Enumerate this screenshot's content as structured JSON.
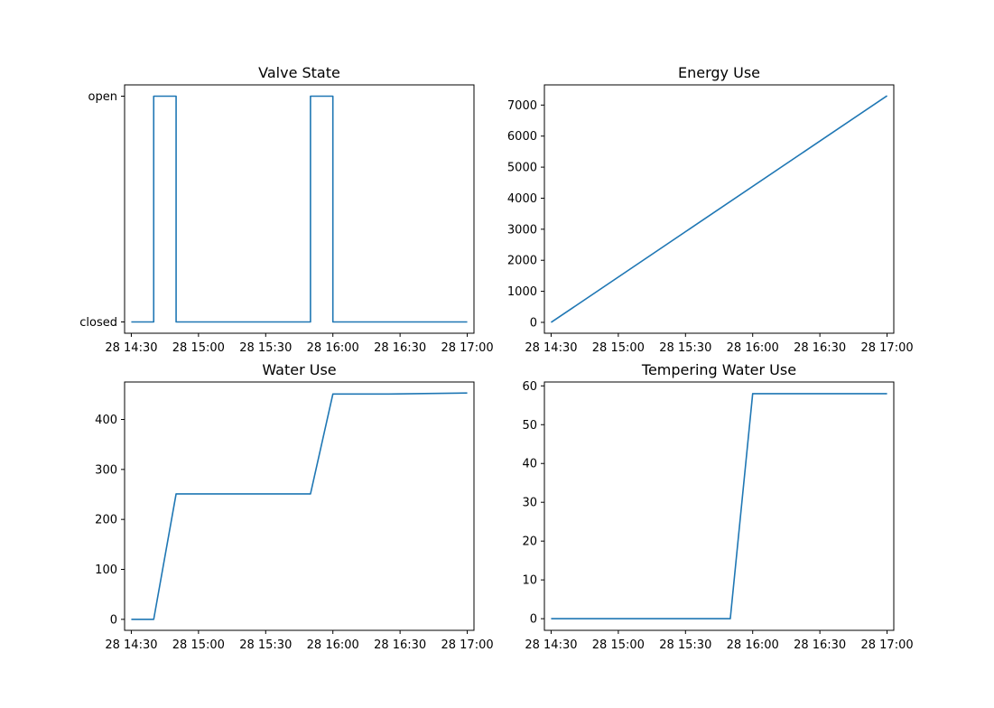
{
  "colors": {
    "series": "#1f77b4"
  },
  "chart_data": [
    {
      "type": "line",
      "title": "Valve State",
      "x_unit": "time",
      "xlim": [
        "28 14:27",
        "28 17:03"
      ],
      "xticks": [
        "28 14:30",
        "28 15:00",
        "28 15:30",
        "28 16:00",
        "28 16:30",
        "28 17:00"
      ],
      "ylim": [
        -0.05,
        1.05
      ],
      "yticks": [
        0,
        1
      ],
      "yticklabels": [
        "closed",
        "open"
      ],
      "series": [
        {
          "x": [
            "28 14:30",
            "28 14:40",
            "28 14:40",
            "28 14:50",
            "28 14:50",
            "28 15:50",
            "28 15:50",
            "28 16:00",
            "28 16:00",
            "28 17:00"
          ],
          "y": [
            0,
            0,
            1,
            1,
            0,
            0,
            1,
            1,
            0,
            0
          ]
        }
      ]
    },
    {
      "type": "line",
      "title": "Energy Use",
      "xlim": [
        "28 14:27",
        "28 17:03"
      ],
      "xticks": [
        "28 14:30",
        "28 15:00",
        "28 15:30",
        "28 16:00",
        "28 16:30",
        "28 17:00"
      ],
      "ylim": [
        -350,
        7650
      ],
      "yticks": [
        0,
        1000,
        2000,
        3000,
        4000,
        5000,
        6000,
        7000
      ],
      "series": [
        {
          "x": [
            "28 14:30",
            "28 17:00"
          ],
          "y": [
            0,
            7300
          ]
        }
      ]
    },
    {
      "type": "line",
      "title": "Water Use",
      "xlim": [
        "28 14:27",
        "28 17:03"
      ],
      "xticks": [
        "28 14:30",
        "28 15:00",
        "28 15:30",
        "28 16:00",
        "28 16:30",
        "28 17:00"
      ],
      "ylim": [
        -22,
        475
      ],
      "yticks": [
        0,
        100,
        200,
        300,
        400
      ],
      "series": [
        {
          "x": [
            "28 14:30",
            "28 14:40",
            "28 14:50",
            "28 15:50",
            "28 16:00",
            "28 16:25",
            "28 17:00"
          ],
          "y": [
            0,
            0,
            251,
            251,
            451,
            451,
            453
          ]
        }
      ]
    },
    {
      "type": "line",
      "title": "Tempering Water Use",
      "xlim": [
        "28 14:27",
        "28 17:03"
      ],
      "xticks": [
        "28 14:30",
        "28 15:00",
        "28 15:30",
        "28 16:00",
        "28 16:30",
        "28 17:00"
      ],
      "ylim": [
        -3,
        61
      ],
      "yticks": [
        0,
        10,
        20,
        30,
        40,
        50,
        60
      ],
      "series": [
        {
          "x": [
            "28 14:30",
            "28 15:50",
            "28 16:00",
            "28 17:00"
          ],
          "y": [
            0,
            0,
            58,
            58
          ]
        }
      ]
    }
  ]
}
